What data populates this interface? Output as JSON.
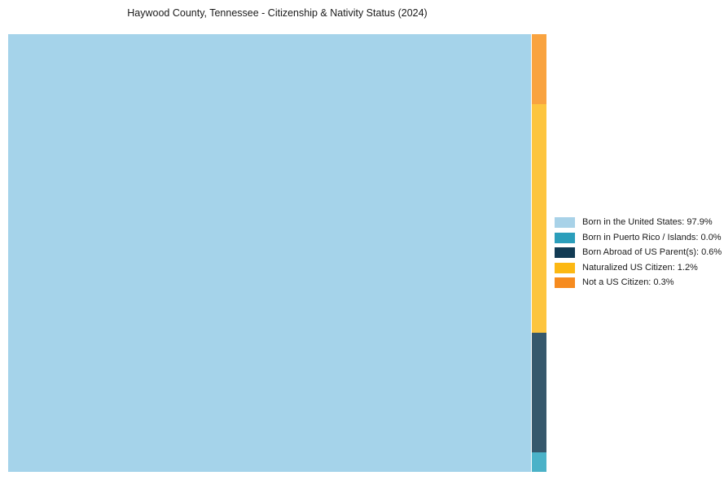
{
  "title": "Haywood County, Tennessee - Citizenship & Nativity Status (2024)",
  "chart_data": {
    "type": "treemap",
    "title": "Haywood County, Tennessee - Citizenship & Nativity Status (2024)",
    "unit": "%",
    "legend_position": "right",
    "categories": [
      "Born in the United States",
      "Born in Puerto Rico / Islands",
      "Born Abroad of US Parent(s)",
      "Naturalized US Citizen",
      "Not a US Citizen"
    ],
    "values": [
      97.9,
      0.0,
      0.6,
      1.2,
      0.3
    ],
    "series": [
      {
        "label": "Born in the United States",
        "value": 97.9,
        "legend_text": "Born in the United States: 97.9%",
        "rect_color": "#A5D3EA",
        "legend_color": "#A8D2E8"
      },
      {
        "label": "Born in Puerto Rico / Islands",
        "value": 0.0,
        "legend_text": "Born in Puerto Rico / Islands: 0.0%",
        "rect_color": "#4BB2C8",
        "legend_color": "#2B9EBB"
      },
      {
        "label": "Born Abroad of US Parent(s)",
        "value": 0.6,
        "legend_text": "Born Abroad of US Parent(s): 0.6%",
        "rect_color": "#36586C",
        "legend_color": "#123B54"
      },
      {
        "label": "Naturalized US Citizen",
        "value": 1.2,
        "legend_text": "Naturalized US Citizen: 1.2%",
        "rect_color": "#FDC53F",
        "legend_color": "#FCB813"
      },
      {
        "label": "Not a US Citizen",
        "value": 0.3,
        "legend_text": "Not a US Citizen: 0.3%",
        "rect_color": "#F9A340",
        "legend_color": "#F68B1F"
      }
    ]
  }
}
